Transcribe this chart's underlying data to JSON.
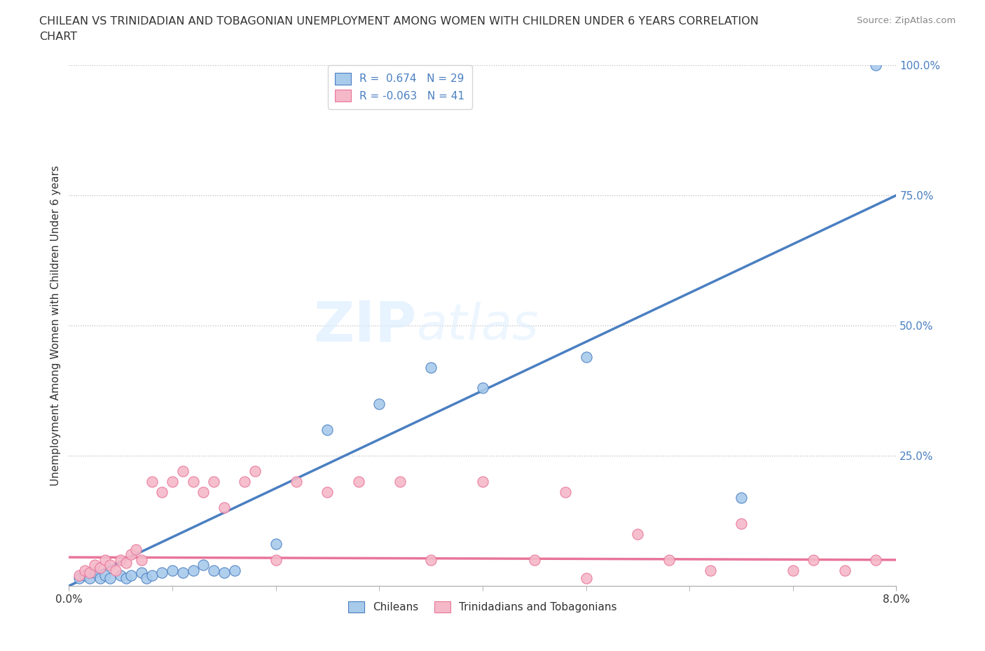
{
  "title_line1": "CHILEAN VS TRINIDADIAN AND TOBAGONIAN UNEMPLOYMENT AMONG WOMEN WITH CHILDREN UNDER 6 YEARS CORRELATION",
  "title_line2": "CHART",
  "source": "Source: ZipAtlas.com",
  "xlim": [
    0.0,
    8.0
  ],
  "ylim": [
    0.0,
    100.0
  ],
  "ylabel": "Unemployment Among Women with Children Under 6 years",
  "legend_label_1": "Chileans",
  "legend_label_2": "Trinidadians and Tobagonians",
  "R1": 0.674,
  "N1": 29,
  "R2": -0.063,
  "N2": 41,
  "color_blue": "#A8CAEB",
  "color_pink": "#F5B8C8",
  "line_color_blue": "#4A7FC1",
  "line_color_pink": "#E8759A",
  "background_color": "#ffffff",
  "watermark_zip": "ZIP",
  "watermark_atlas": "atlas",
  "reg_line_blue_x0": 0.0,
  "reg_line_blue_y0": 0.0,
  "reg_line_blue_x1": 8.0,
  "reg_line_blue_y1": 75.0,
  "reg_line_pink_x0": 0.0,
  "reg_line_pink_y0": 5.5,
  "reg_line_pink_x1": 8.0,
  "reg_line_pink_y1": 5.0,
  "chilean_x": [
    0.1,
    0.15,
    0.2,
    0.25,
    0.3,
    0.35,
    0.4,
    0.5,
    0.55,
    0.6,
    0.7,
    0.75,
    0.8,
    0.9,
    1.0,
    1.1,
    1.2,
    1.3,
    1.4,
    1.5,
    1.6,
    2.0,
    2.5,
    3.0,
    3.5,
    4.0,
    5.0,
    6.5,
    7.8
  ],
  "chilean_y": [
    1.5,
    2.0,
    1.5,
    2.5,
    1.5,
    2.0,
    1.5,
    2.0,
    1.5,
    2.0,
    2.5,
    1.5,
    2.0,
    2.5,
    3.0,
    2.5,
    3.0,
    4.0,
    3.0,
    2.5,
    3.0,
    8.0,
    30.0,
    35.0,
    42.0,
    38.0,
    44.0,
    17.0,
    100.0
  ],
  "trinidad_x": [
    0.1,
    0.15,
    0.2,
    0.25,
    0.3,
    0.35,
    0.4,
    0.45,
    0.5,
    0.55,
    0.6,
    0.65,
    0.7,
    0.8,
    0.9,
    1.0,
    1.1,
    1.2,
    1.3,
    1.4,
    1.5,
    1.7,
    1.8,
    2.0,
    2.2,
    2.5,
    2.8,
    3.2,
    3.5,
    4.0,
    4.5,
    4.8,
    5.0,
    5.5,
    5.8,
    6.2,
    6.5,
    7.0,
    7.2,
    7.5,
    7.8
  ],
  "trinidad_y": [
    2.0,
    3.0,
    2.5,
    4.0,
    3.5,
    5.0,
    4.0,
    3.0,
    5.0,
    4.5,
    6.0,
    7.0,
    5.0,
    20.0,
    18.0,
    20.0,
    22.0,
    20.0,
    18.0,
    20.0,
    15.0,
    20.0,
    22.0,
    5.0,
    20.0,
    18.0,
    20.0,
    20.0,
    5.0,
    20.0,
    5.0,
    18.0,
    1.5,
    10.0,
    5.0,
    3.0,
    12.0,
    3.0,
    5.0,
    3.0,
    5.0
  ]
}
